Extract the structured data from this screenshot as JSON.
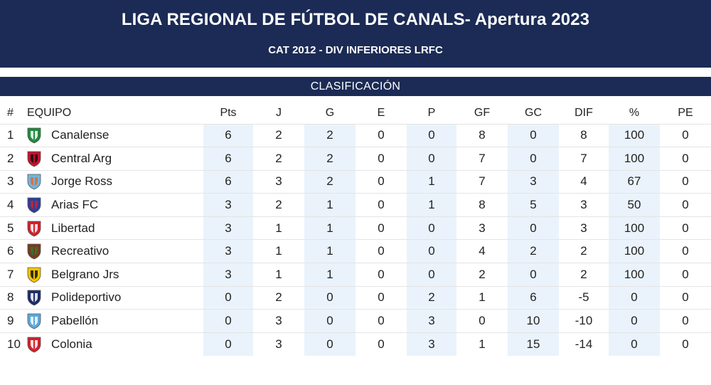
{
  "header": {
    "title": "LIGA REGIONAL DE FÚTBOL DE CANALS- Apertura 2023",
    "subtitle": "CAT 2012 - DIV INFERIORES LRFC"
  },
  "section": {
    "label": "CLASIFICACIÓN"
  },
  "table": {
    "columns": [
      "#",
      "EQUIPO",
      "Pts",
      "J",
      "G",
      "E",
      "P",
      "GF",
      "GC",
      "DIF",
      "%",
      "PE"
    ],
    "rows": [
      {
        "pos": "1",
        "team": "Canalense",
        "pts": "6",
        "j": "2",
        "g": "2",
        "e": "0",
        "p": "0",
        "gf": "8",
        "gc": "0",
        "dif": "8",
        "pct": "100",
        "pe": "0",
        "crest": "canalense-crest",
        "colors": [
          "#1e8a3c",
          "#ffffff"
        ]
      },
      {
        "pos": "2",
        "team": "Central Arg",
        "pts": "6",
        "j": "2",
        "g": "2",
        "e": "0",
        "p": "0",
        "gf": "7",
        "gc": "0",
        "dif": "7",
        "pct": "100",
        "pe": "0",
        "crest": "central-arg-crest",
        "colors": [
          "#c8102e",
          "#111111"
        ]
      },
      {
        "pos": "3",
        "team": "Jorge Ross",
        "pts": "6",
        "j": "3",
        "g": "2",
        "e": "0",
        "p": "1",
        "gf": "7",
        "gc": "3",
        "dif": "4",
        "pct": "67",
        "pe": "0",
        "crest": "jorge-ross-crest",
        "colors": [
          "#6fb6e0",
          "#e86a2a"
        ]
      },
      {
        "pos": "4",
        "team": "Arias FC",
        "pts": "3",
        "j": "2",
        "g": "1",
        "e": "0",
        "p": "1",
        "gf": "8",
        "gc": "5",
        "dif": "3",
        "pct": "50",
        "pe": "0",
        "crest": "arias-fc-crest",
        "colors": [
          "#2a3f9c",
          "#d0202a"
        ]
      },
      {
        "pos": "5",
        "team": "Libertad",
        "pts": "3",
        "j": "1",
        "g": "1",
        "e": "0",
        "p": "0",
        "gf": "3",
        "gc": "0",
        "dif": "3",
        "pct": "100",
        "pe": "0",
        "crest": "libertad-crest",
        "colors": [
          "#d0202a",
          "#ffffff"
        ]
      },
      {
        "pos": "6",
        "team": "Recreativo",
        "pts": "3",
        "j": "1",
        "g": "1",
        "e": "0",
        "p": "0",
        "gf": "4",
        "gc": "2",
        "dif": "2",
        "pct": "100",
        "pe": "0",
        "crest": "recreativo-crest",
        "colors": [
          "#7a3a1a",
          "#2a7a3a"
        ]
      },
      {
        "pos": "7",
        "team": "Belgrano Jrs",
        "pts": "3",
        "j": "1",
        "g": "1",
        "e": "0",
        "p": "0",
        "gf": "2",
        "gc": "0",
        "dif": "2",
        "pct": "100",
        "pe": "0",
        "crest": "belgrano-jrs-crest",
        "colors": [
          "#f2c500",
          "#111111"
        ]
      },
      {
        "pos": "8",
        "team": "Polideportivo",
        "pts": "0",
        "j": "2",
        "g": "0",
        "e": "0",
        "p": "2",
        "gf": "1",
        "gc": "6",
        "dif": "-5",
        "pct": "0",
        "pe": "0",
        "crest": "polideportivo-crest",
        "colors": [
          "#1b2b6b",
          "#ffffff"
        ]
      },
      {
        "pos": "9",
        "team": "Pabellón",
        "pts": "0",
        "j": "3",
        "g": "0",
        "e": "0",
        "p": "3",
        "gf": "0",
        "gc": "10",
        "dif": "-10",
        "pct": "0",
        "pe": "0",
        "crest": "pabellon-crest",
        "colors": [
          "#5aa8dc",
          "#ffffff"
        ]
      },
      {
        "pos": "10",
        "team": "Colonia",
        "pts": "0",
        "j": "3",
        "g": "0",
        "e": "0",
        "p": "3",
        "gf": "1",
        "gc": "15",
        "dif": "-14",
        "pct": "0",
        "pe": "0",
        "crest": "colonia-crest",
        "colors": [
          "#d0202a",
          "#ffffff"
        ]
      }
    ]
  }
}
